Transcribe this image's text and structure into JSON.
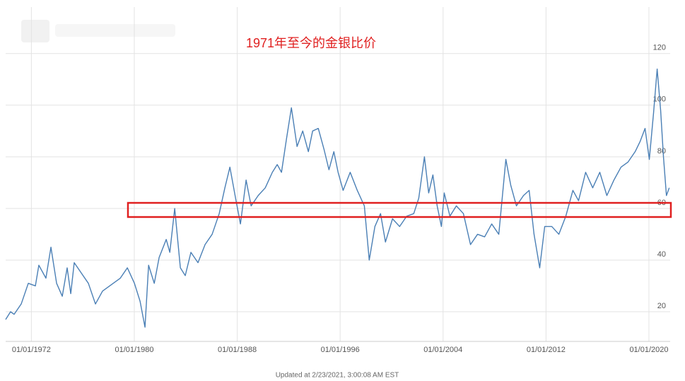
{
  "chart_data": {
    "type": "line",
    "title": "1971年至今的金银比价",
    "footnote": "Updated at 2/23/2021, 3:00:08 AM EST",
    "xlim": [
      1970,
      2021.65
    ],
    "ylim": [
      8.5,
      138
    ],
    "xticks": [
      {
        "value": 1972,
        "label": "01/01/1972"
      },
      {
        "value": 1980,
        "label": "01/01/1980"
      },
      {
        "value": 1988,
        "label": "01/01/1988"
      },
      {
        "value": 1996,
        "label": "01/01/1996"
      },
      {
        "value": 2004,
        "label": "01/01/2004"
      },
      {
        "value": 2012,
        "label": "01/01/2012"
      },
      {
        "value": 2020,
        "label": "01/01/2020"
      }
    ],
    "yticks": [
      20,
      40,
      60,
      80,
      100,
      120
    ],
    "grid": true,
    "series": [
      {
        "color": "#4a7fb5",
        "x": [
          1970.0,
          1970.38,
          1970.66,
          1971.21,
          1971.76,
          1972.31,
          1972.58,
          1973.13,
          1973.52,
          1973.96,
          1974.4,
          1974.78,
          1975.06,
          1975.33,
          1975.88,
          1976.43,
          1976.98,
          1977.53,
          1978.36,
          1978.91,
          1979.46,
          1980.01,
          1980.45,
          1980.83,
          1981.11,
          1981.55,
          1981.93,
          1982.48,
          1982.76,
          1983.14,
          1983.58,
          1983.96,
          1984.4,
          1984.95,
          1985.5,
          1986.05,
          1986.6,
          1987.04,
          1987.43,
          1987.87,
          1988.25,
          1988.69,
          1989.08,
          1989.63,
          1990.18,
          1990.73,
          1991.11,
          1991.44,
          1991.83,
          1992.21,
          1992.65,
          1993.09,
          1993.53,
          1993.86,
          1994.3,
          1994.74,
          1995.13,
          1995.51,
          1995.84,
          1996.23,
          1996.78,
          1997.33,
          1997.88,
          1998.26,
          1998.7,
          1999.14,
          1999.52,
          2000.07,
          2000.62,
          2001.17,
          2001.72,
          2002.11,
          2002.55,
          2002.88,
          2003.21,
          2003.54,
          2003.87,
          2004.09,
          2004.53,
          2005.03,
          2005.58,
          2006.13,
          2006.68,
          2007.23,
          2007.78,
          2008.33,
          2008.88,
          2009.26,
          2009.7,
          2010.25,
          2010.69,
          2011.07,
          2011.51,
          2011.9,
          2012.45,
          2013.0,
          2013.54,
          2014.09,
          2014.53,
          2015.08,
          2015.63,
          2016.18,
          2016.73,
          2017.28,
          2017.83,
          2018.38,
          2018.93,
          2019.32,
          2019.7,
          2020.03,
          2020.36,
          2020.64,
          2020.91,
          2021.13,
          2021.36,
          2021.58
        ],
        "values": [
          17,
          20,
          19,
          23,
          31,
          30,
          38,
          33,
          45,
          31,
          26,
          37,
          27,
          39,
          35,
          31,
          23,
          28,
          31,
          33,
          37,
          31,
          24,
          14,
          38,
          31,
          41,
          48,
          43,
          60,
          37,
          34,
          43,
          39,
          46,
          50,
          58,
          68,
          76,
          64,
          54,
          71,
          61,
          65,
          68,
          74,
          77,
          74,
          87,
          99,
          84,
          90,
          82,
          90,
          91,
          83,
          75,
          82,
          74,
          67,
          74,
          67,
          61,
          40,
          53,
          58,
          47,
          56,
          53,
          57,
          58,
          64,
          80,
          66,
          73,
          61,
          53,
          66,
          57,
          61,
          58,
          46,
          50,
          49,
          54,
          50,
          79,
          69,
          61,
          65,
          67,
          50,
          37,
          53,
          53,
          50,
          57,
          67,
          63,
          74,
          68,
          74,
          65,
          71,
          76,
          78,
          82,
          86,
          91,
          79,
          97,
          114,
          98,
          80,
          65,
          68
        ]
      }
    ]
  }
}
